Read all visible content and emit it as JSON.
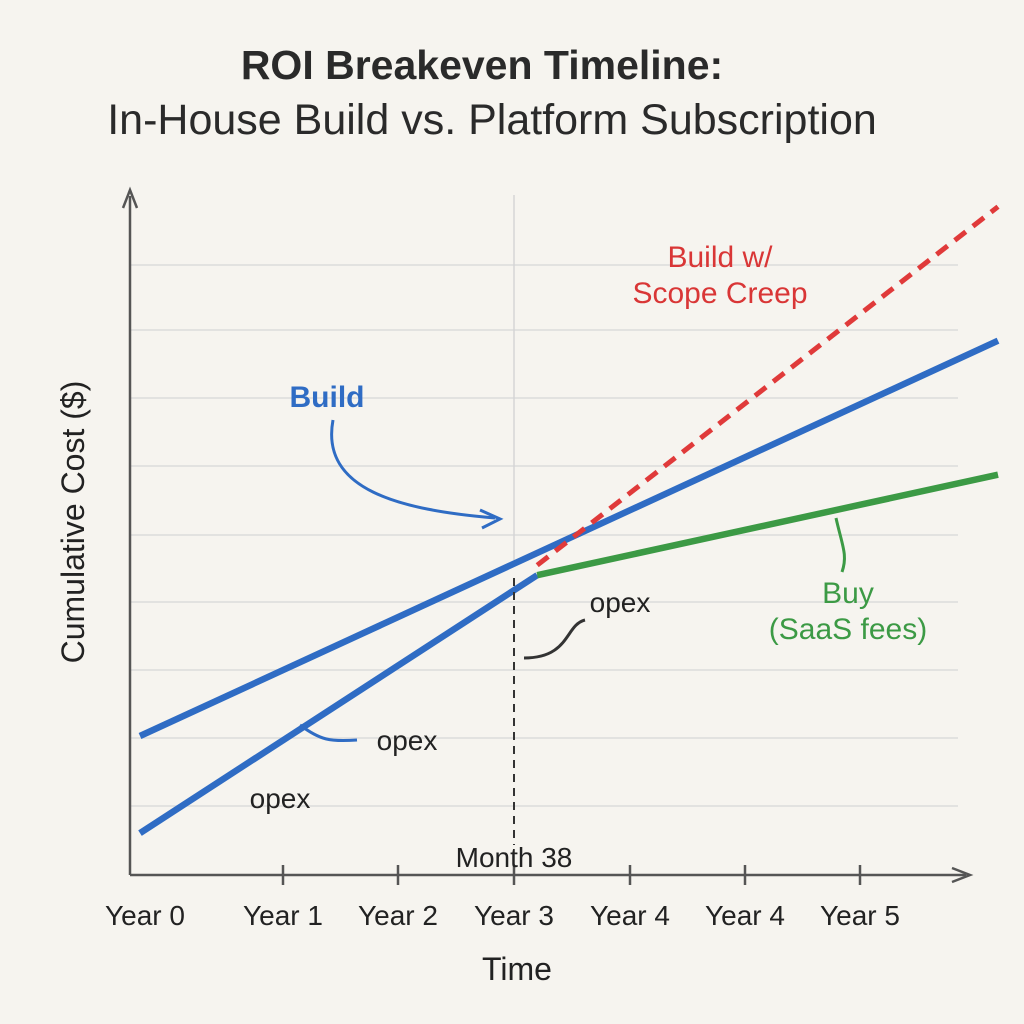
{
  "chart_data": {
    "type": "line",
    "title": "ROI Breakeven Timeline:",
    "subtitle": "In-House Build vs. Platform Subscription",
    "xlabel": "Time",
    "ylabel": "Cumulative Cost ($)",
    "x_ticks": [
      "Year 0",
      "Year 1",
      "Year 2",
      "Year 3",
      "Year 4",
      "Year 4",
      "Year 5"
    ],
    "x_tick_values": [
      0,
      1,
      2,
      3,
      4,
      5,
      6
    ],
    "xlim": [
      0,
      7.2
    ],
    "ylim": [
      0,
      10
    ],
    "grid": true,
    "series": [
      {
        "name": "Build",
        "label": "Build",
        "color": "#2f6cc4",
        "style": "solid",
        "x": [
          0,
          7.2
        ],
        "y": [
          2.0,
          7.9
        ]
      },
      {
        "name": "Build (opex)",
        "label": "",
        "color": "#2f6cc4",
        "style": "solid",
        "x": [
          0,
          3.2
        ],
        "y": [
          0.55,
          4.4
        ]
      },
      {
        "name": "Build w/ Scope Creep",
        "label": "Build w/\nScope Creep",
        "color": "#e03a3a",
        "style": "dashed",
        "x": [
          3.2,
          7.2
        ],
        "y": [
          4.55,
          9.9
        ]
      },
      {
        "name": "Buy (SaaS fees)",
        "label": "Buy\n(SaaS fees)",
        "color": "#3c9a45",
        "style": "solid",
        "x": [
          3.2,
          7.2
        ],
        "y": [
          4.4,
          5.9
        ]
      }
    ],
    "annotations": [
      {
        "text": "Month 38",
        "x": 3.2
      },
      {
        "text": "opex",
        "target": "build-lower-line"
      },
      {
        "text": "opex",
        "target": "build-lower-line-start"
      },
      {
        "text": "opex",
        "target": "breakeven-drop"
      }
    ]
  }
}
